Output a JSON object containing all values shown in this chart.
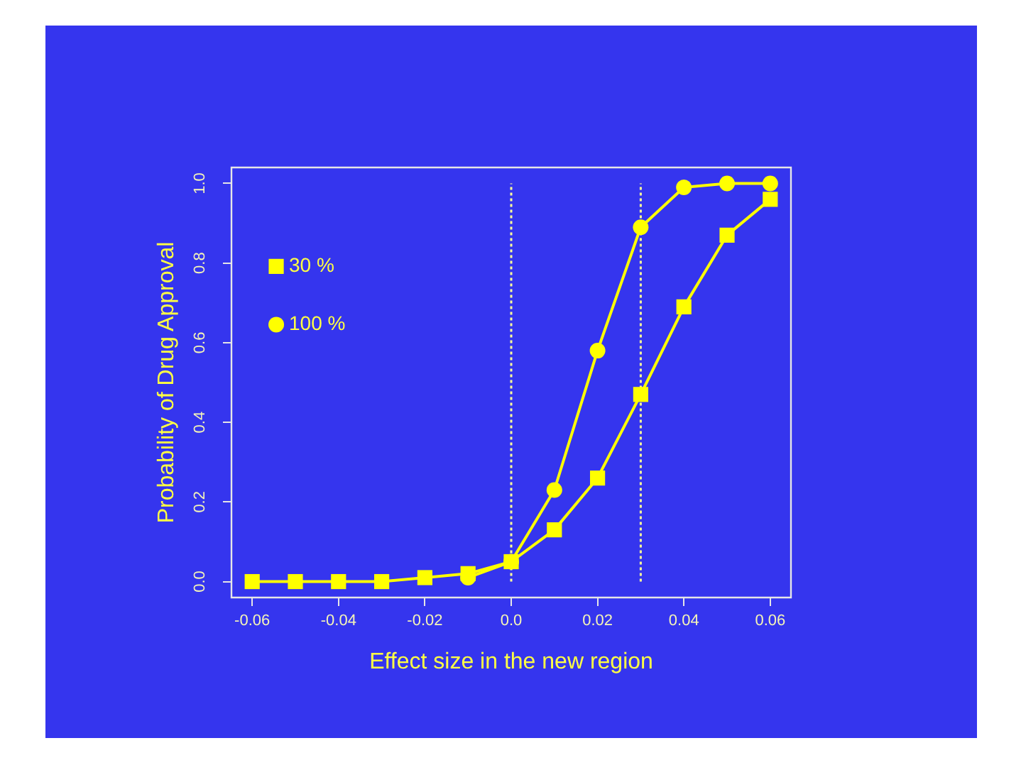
{
  "chart_data": {
    "type": "line",
    "xlabel": "Effect size in the new region",
    "ylabel": "Probability of Drug Approval",
    "x": [
      -0.06,
      -0.05,
      -0.04,
      -0.03,
      -0.02,
      -0.01,
      0,
      0.01,
      0.02,
      0.03,
      0.04,
      0.05,
      0.06
    ],
    "series": [
      {
        "name": "30 %",
        "color": "#ffff00",
        "marker": "square",
        "values": [
          0,
          0,
          0,
          0,
          0.01,
          0.02,
          0.05,
          0.13,
          0.26,
          0.47,
          0.69,
          0.87,
          0.96
        ]
      },
      {
        "name": "100 %",
        "color": "#ffff00",
        "marker": "circle",
        "values": [
          null,
          null,
          null,
          null,
          null,
          0.01,
          0.05,
          0.23,
          0.58,
          0.89,
          0.99,
          1.0,
          1.0
        ]
      }
    ],
    "xlim": [
      -0.0648,
      0.0648
    ],
    "ylim": [
      -0.04,
      1.04
    ],
    "xticks": [
      -0.06,
      -0.04,
      -0.02,
      {
        "value": 0,
        "label": "0.0"
      },
      0.02,
      0.04,
      0.06
    ],
    "yticks": [
      {
        "value": 0,
        "label": "0.0"
      },
      0.2,
      0.4,
      0.6,
      0.8,
      {
        "value": 1,
        "label": "1.0"
      }
    ],
    "ref_lines": [
      {
        "axis": "x",
        "value": 0,
        "color": "#ffff99",
        "line_style": "dotted"
      },
      {
        "axis": "x",
        "value": 0.03,
        "color": "#ffff99",
        "line_style": "dotted"
      }
    ],
    "legend": "top left",
    "line_style": "solid"
  }
}
